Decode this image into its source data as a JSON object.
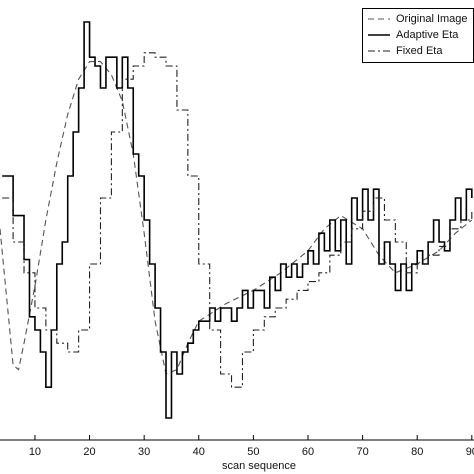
{
  "chart_data": {
    "type": "line",
    "x_label": "scan sequence",
    "xlim": [
      3.6,
      90.4
    ],
    "ylim": [
      0,
      100
    ],
    "xticks": [
      10,
      20,
      30,
      40,
      50,
      60,
      70,
      80,
      90
    ],
    "legend": "upper right",
    "series": [
      {
        "name": "Original Image",
        "color": "#555555",
        "style": "dashed",
        "drawstyle": "default",
        "x": [
          3.6,
          5,
          6,
          7,
          8,
          10,
          12,
          14,
          16,
          18,
          20,
          22,
          24,
          26,
          28,
          30,
          32,
          34,
          36,
          38,
          40,
          45,
          50,
          55,
          60,
          63,
          66,
          70,
          73,
          76,
          80,
          84,
          87,
          90
        ],
        "values": [
          48,
          30,
          17,
          16,
          22,
          35,
          50,
          63,
          74,
          82,
          86,
          86,
          83,
          77,
          65,
          47,
          27,
          15,
          16,
          22,
          27,
          31,
          34,
          38,
          43,
          48,
          51,
          48,
          42,
          38,
          40,
          43,
          47,
          50
        ]
      },
      {
        "name": "Adaptive Eta",
        "color": "#000000",
        "style": "solid",
        "drawstyle": "steps",
        "x": [
          4,
          5,
          6,
          7,
          8,
          9,
          10,
          11,
          12,
          13,
          14,
          15,
          16,
          17,
          18,
          19,
          20,
          21,
          22,
          23,
          24,
          25,
          26,
          27,
          28,
          29,
          30,
          31,
          32,
          33,
          34,
          35,
          36,
          37,
          38,
          39,
          40,
          41,
          42,
          43,
          44,
          45,
          46,
          47,
          48,
          49,
          50,
          51,
          52,
          53,
          54,
          55,
          56,
          57,
          58,
          59,
          60,
          61,
          62,
          63,
          64,
          65,
          66,
          67,
          68,
          69,
          70,
          71,
          72,
          73,
          74,
          75,
          76,
          77,
          78,
          79,
          80,
          81,
          82,
          83,
          84,
          85,
          86,
          87,
          88,
          89,
          90
        ],
        "values": [
          60,
          60,
          51,
          51,
          41,
          28,
          25,
          20,
          12,
          25,
          40,
          45,
          60,
          70,
          80,
          95,
          87,
          85,
          80,
          87,
          87,
          80,
          87,
          80,
          65,
          60,
          50,
          40,
          30,
          20,
          5,
          20,
          15,
          20,
          22,
          25,
          27,
          27,
          30,
          27,
          30,
          30,
          27,
          30,
          34,
          30,
          34,
          34,
          30,
          37,
          34,
          40,
          37,
          40,
          37,
          40,
          43,
          40,
          47,
          43,
          50,
          43,
          50,
          40,
          55,
          50,
          57,
          50,
          57,
          40,
          45,
          40,
          34,
          40,
          34,
          40,
          43,
          40,
          45,
          50,
          45,
          43,
          50,
          55,
          50,
          57,
          55
        ]
      },
      {
        "name": "Fixed Eta",
        "color": "#222222",
        "style": "dashdot",
        "drawstyle": "steps",
        "x": [
          4,
          6,
          8,
          10,
          12,
          14,
          16,
          18,
          20,
          22,
          24,
          26,
          28,
          30,
          32,
          34,
          36,
          38,
          40,
          42,
          44,
          46,
          48,
          50,
          52,
          54,
          56,
          58,
          60,
          62,
          64,
          66,
          68,
          70,
          72,
          74,
          76,
          78,
          80,
          82,
          84,
          86,
          88,
          90
        ],
        "values": [
          55,
          45,
          38,
          30,
          25,
          22,
          20,
          25,
          40,
          55,
          70,
          82,
          85,
          88,
          87,
          85,
          75,
          60,
          40,
          25,
          15,
          12,
          20,
          25,
          28,
          30,
          32,
          34,
          36,
          38,
          42,
          45,
          48,
          52,
          55,
          50,
          45,
          38,
          40,
          42,
          44,
          48,
          50,
          52
        ]
      }
    ]
  }
}
